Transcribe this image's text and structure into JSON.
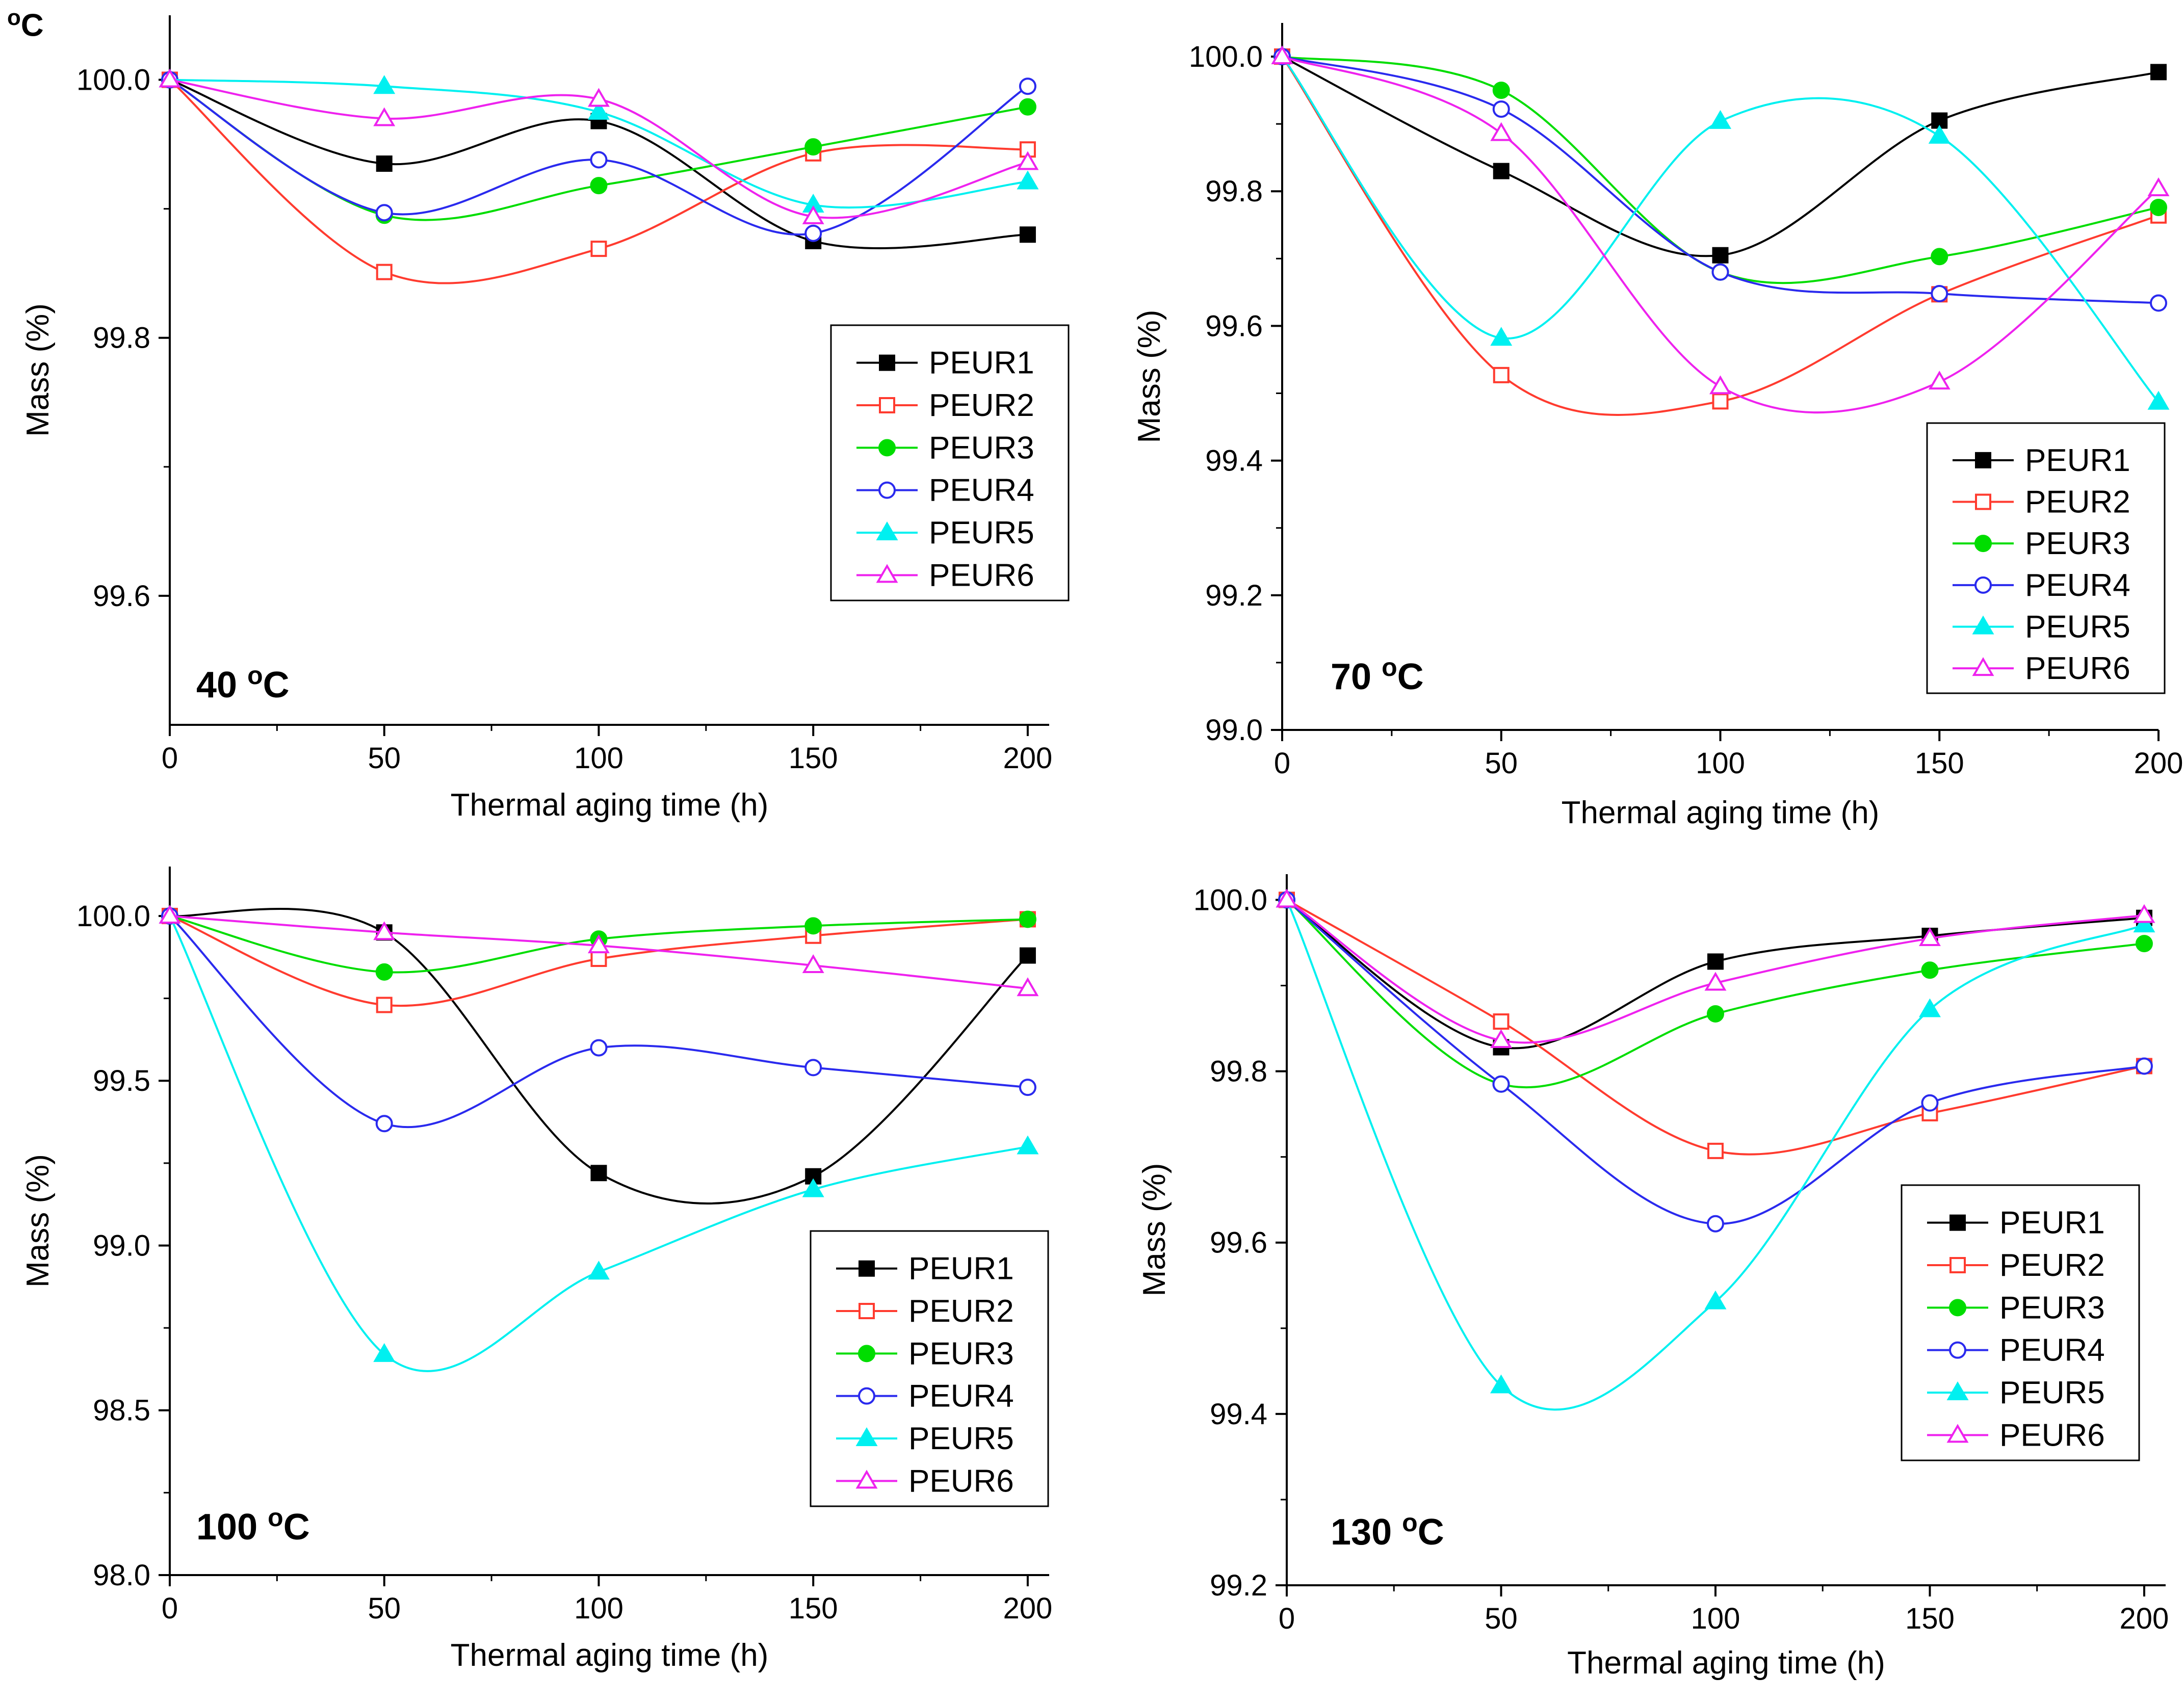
{
  "corner_text": {
    "sup": "o",
    "main": "C"
  },
  "chart_data": [
    {
      "type": "line",
      "panel": "top-left",
      "annotation": "40",
      "annotation_unit": "C",
      "annotation_sup": "o",
      "xlabel": "Thermal aging time (h)",
      "ylabel": "Mass (%)",
      "xlim": [
        0,
        205
      ],
      "ylim": [
        99.5,
        100.05
      ],
      "xticks": [
        0,
        50,
        100,
        150,
        200
      ],
      "yticks": [
        99.6,
        99.8,
        100.0
      ],
      "ytick_format": 1,
      "legend_position": "right-middle",
      "x": [
        0,
        50,
        100,
        150,
        200
      ],
      "series": [
        {
          "name": "PEUR1",
          "values": [
            100.0,
            99.935,
            99.968,
            99.875,
            99.88
          ]
        },
        {
          "name": "PEUR2",
          "values": [
            100.0,
            99.851,
            99.869,
            99.943,
            99.946
          ]
        },
        {
          "name": "PEUR3",
          "values": [
            100.0,
            99.895,
            99.918,
            99.948,
            99.979
          ]
        },
        {
          "name": "PEUR4",
          "values": [
            100.0,
            99.897,
            99.938,
            99.881,
            99.995
          ]
        },
        {
          "name": "PEUR5",
          "values": [
            100.0,
            99.995,
            99.975,
            99.903,
            99.921
          ]
        },
        {
          "name": "PEUR6",
          "values": [
            100.0,
            99.97,
            99.985,
            99.894,
            99.936
          ]
        }
      ]
    },
    {
      "type": "line",
      "panel": "top-right",
      "annotation": "70",
      "annotation_unit": "C",
      "annotation_sup": "o",
      "xlabel": "Thermal aging time (h)",
      "ylabel": "Mass (%)",
      "xlim": [
        0,
        200
      ],
      "ylim": [
        99.0,
        100.05
      ],
      "xticks": [
        0,
        50,
        100,
        150,
        200
      ],
      "yticks": [
        99.0,
        99.2,
        99.4,
        99.6,
        99.8,
        100.0
      ],
      "ytick_format": 1,
      "legend_position": "bottom-right",
      "x": [
        0,
        50,
        100,
        150,
        200
      ],
      "series": [
        {
          "name": "PEUR1",
          "values": [
            100.0,
            99.83,
            99.705,
            99.905,
            99.977
          ]
        },
        {
          "name": "PEUR2",
          "values": [
            100.0,
            99.527,
            99.488,
            99.647,
            99.764
          ]
        },
        {
          "name": "PEUR3",
          "values": [
            100.0,
            99.95,
            99.68,
            99.703,
            99.776
          ]
        },
        {
          "name": "PEUR4",
          "values": [
            100.0,
            99.922,
            99.68,
            99.648,
            99.634
          ]
        },
        {
          "name": "PEUR5",
          "values": [
            100.0,
            99.582,
            99.904,
            99.882,
            99.487
          ]
        },
        {
          "name": "PEUR6",
          "values": [
            100.0,
            99.886,
            99.51,
            99.517,
            99.804
          ]
        }
      ]
    },
    {
      "type": "line",
      "panel": "bottom-left",
      "annotation": "100",
      "annotation_unit": "C",
      "annotation_sup": "o",
      "xlabel": "Thermal aging time (h)",
      "ylabel": "Mass (%)",
      "xlim": [
        0,
        205
      ],
      "ylim": [
        98.0,
        100.15
      ],
      "xticks": [
        0,
        50,
        100,
        150,
        200
      ],
      "yticks": [
        98.0,
        98.5,
        99.0,
        99.5,
        100.0
      ],
      "ytick_format": 1,
      "legend_position": "right",
      "x": [
        0,
        50,
        100,
        150,
        200
      ],
      "series": [
        {
          "name": "PEUR1",
          "values": [
            100.0,
            99.95,
            99.22,
            99.21,
            99.88
          ]
        },
        {
          "name": "PEUR2",
          "values": [
            100.0,
            99.73,
            99.87,
            99.94,
            99.99
          ]
        },
        {
          "name": "PEUR3",
          "values": [
            100.0,
            99.83,
            99.93,
            99.97,
            99.99
          ]
        },
        {
          "name": "PEUR4",
          "values": [
            100.0,
            99.37,
            99.6,
            99.54,
            99.48
          ]
        },
        {
          "name": "PEUR5",
          "values": [
            100.0,
            98.67,
            98.92,
            99.17,
            99.3
          ]
        },
        {
          "name": "PEUR6",
          "values": [
            100.0,
            99.95,
            99.91,
            99.85,
            99.78
          ]
        }
      ]
    },
    {
      "type": "line",
      "panel": "bottom-right",
      "annotation": "130",
      "annotation_unit": "C",
      "annotation_sup": "o",
      "xlabel": "Thermal aging time (h)",
      "ylabel": "Mass (%)",
      "xlim": [
        0,
        205
      ],
      "ylim": [
        99.2,
        100.03
      ],
      "xticks": [
        0,
        50,
        100,
        150,
        200
      ],
      "yticks": [
        99.2,
        99.4,
        99.6,
        99.8,
        100.0
      ],
      "ytick_format": 1,
      "legend_position": "right",
      "x": [
        0,
        50,
        100,
        150,
        200
      ],
      "series": [
        {
          "name": "PEUR1",
          "values": [
            100.0,
            99.828,
            99.928,
            99.958,
            99.979
          ]
        },
        {
          "name": "PEUR2",
          "values": [
            100.0,
            99.858,
            99.707,
            99.751,
            99.806
          ]
        },
        {
          "name": "PEUR3",
          "values": [
            100.0,
            99.785,
            99.867,
            99.918,
            99.949
          ]
        },
        {
          "name": "PEUR4",
          "values": [
            100.0,
            99.785,
            99.622,
            99.763,
            99.806
          ]
        },
        {
          "name": "PEUR5",
          "values": [
            100.0,
            99.433,
            99.531,
            99.872,
            99.971
          ]
        },
        {
          "name": "PEUR6",
          "values": [
            100.0,
            99.836,
            99.903,
            99.955,
            99.982
          ]
        }
      ]
    }
  ],
  "series_styles": [
    {
      "color": "#000000",
      "marker": "square",
      "filled": true
    },
    {
      "color": "#ff3b2f",
      "marker": "square",
      "filled": false
    },
    {
      "color": "#00dd00",
      "marker": "circle",
      "filled": true
    },
    {
      "color": "#2a2aee",
      "marker": "circle",
      "filled": false
    },
    {
      "color": "#00f0f0",
      "marker": "triangle",
      "filled": true
    },
    {
      "color": "#ee22ee",
      "marker": "triangle",
      "filled": false
    }
  ]
}
